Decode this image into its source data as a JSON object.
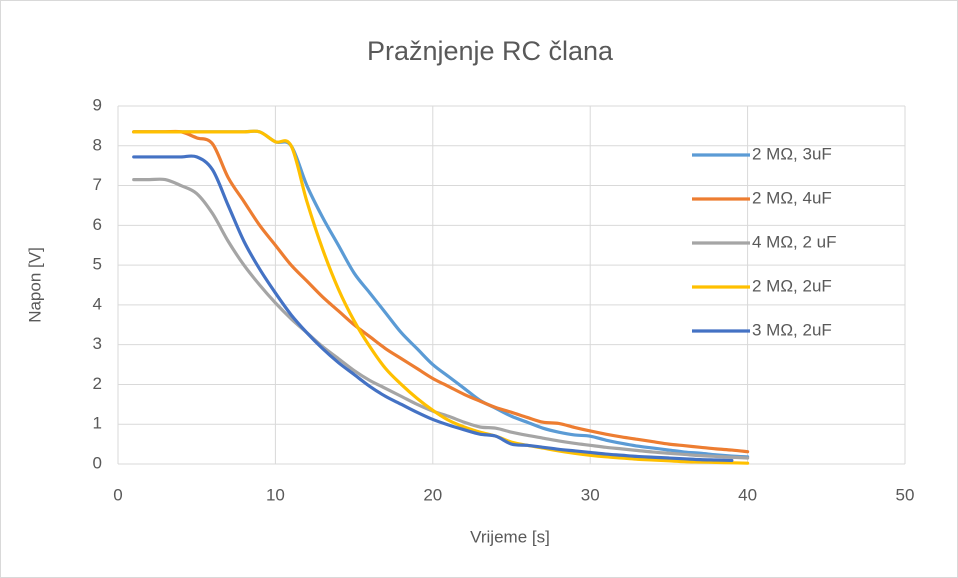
{
  "chart_data": {
    "type": "line",
    "title": "Pražnjenje RC člana",
    "x_label": "Vrijeme [s]",
    "y_label": "Napon [V]",
    "x": [
      1,
      2,
      3,
      4,
      5,
      6,
      7,
      8,
      9,
      10,
      11,
      12,
      13,
      14,
      15,
      16,
      17,
      18,
      19,
      20,
      21,
      22,
      23,
      24,
      25,
      26,
      27,
      28,
      29,
      30,
      31,
      32,
      33,
      34,
      35,
      36,
      37,
      38,
      39,
      40
    ],
    "series": [
      {
        "name": "2 MΩ, 3uF",
        "color": "#5b9bd5",
        "values": [
          8.35,
          8.35,
          8.35,
          8.35,
          8.35,
          8.35,
          8.35,
          8.35,
          8.35,
          8.1,
          8.0,
          7.0,
          6.2,
          5.5,
          4.8,
          4.3,
          3.8,
          3.3,
          2.9,
          2.5,
          2.2,
          1.9,
          1.6,
          1.4,
          1.2,
          1.05,
          0.9,
          0.8,
          0.73,
          0.7,
          0.6,
          0.52,
          0.45,
          0.4,
          0.35,
          0.3,
          0.27,
          0.23,
          0.2,
          0.18
        ]
      },
      {
        "name": "2 MΩ, 4uF",
        "color": "#ed7d31",
        "values": [
          8.35,
          8.35,
          8.35,
          8.35,
          8.2,
          8.05,
          7.2,
          6.6,
          6.0,
          5.5,
          5.0,
          4.6,
          4.2,
          3.85,
          3.5,
          3.2,
          2.9,
          2.65,
          2.4,
          2.15,
          1.95,
          1.75,
          1.58,
          1.42,
          1.3,
          1.17,
          1.05,
          1.02,
          0.92,
          0.83,
          0.75,
          0.68,
          0.62,
          0.56,
          0.5,
          0.46,
          0.42,
          0.38,
          0.35,
          0.31
        ]
      },
      {
        "name": "4 MΩ, 2 uF",
        "color": "#a5a5a5",
        "values": [
          7.15,
          7.15,
          7.15,
          7.0,
          6.8,
          6.3,
          5.6,
          5.0,
          4.5,
          4.05,
          3.65,
          3.3,
          2.95,
          2.65,
          2.35,
          2.1,
          1.9,
          1.7,
          1.5,
          1.33,
          1.2,
          1.05,
          0.93,
          0.9,
          0.8,
          0.72,
          0.65,
          0.58,
          0.52,
          0.47,
          0.42,
          0.38,
          0.34,
          0.3,
          0.27,
          0.24,
          0.21,
          0.19,
          0.17,
          0.15
        ]
      },
      {
        "name": "2 MΩ, 2uF",
        "color": "#ffc000",
        "values": [
          8.35,
          8.35,
          8.35,
          8.35,
          8.35,
          8.35,
          8.35,
          8.35,
          8.35,
          8.1,
          8.0,
          6.6,
          5.4,
          4.4,
          3.6,
          2.95,
          2.4,
          2.0,
          1.65,
          1.35,
          1.1,
          0.93,
          0.8,
          0.7,
          0.55,
          0.47,
          0.4,
          0.33,
          0.27,
          0.22,
          0.18,
          0.15,
          0.12,
          0.1,
          0.08,
          0.06,
          0.05,
          0.04,
          0.03,
          0.02
        ]
      },
      {
        "name": "3 MΩ, 2uF",
        "color": "#4472c4",
        "values": [
          7.72,
          7.72,
          7.72,
          7.72,
          7.72,
          7.4,
          6.5,
          5.6,
          4.9,
          4.3,
          3.75,
          3.3,
          2.9,
          2.55,
          2.25,
          1.95,
          1.7,
          1.5,
          1.3,
          1.12,
          0.98,
          0.86,
          0.75,
          0.7,
          0.5,
          0.47,
          0.42,
          0.37,
          0.33,
          0.29,
          0.25,
          0.22,
          0.19,
          0.17,
          0.15,
          0.13,
          0.11,
          0.1,
          0.09,
          null
        ]
      }
    ],
    "xlim": [
      0,
      50
    ],
    "xticks": [
      0,
      10,
      20,
      30,
      40,
      50
    ],
    "ylim": [
      0,
      9
    ],
    "yticks": [
      0,
      1,
      2,
      3,
      4,
      5,
      6,
      7,
      8,
      9
    ],
    "grid": true,
    "legend": "right"
  }
}
